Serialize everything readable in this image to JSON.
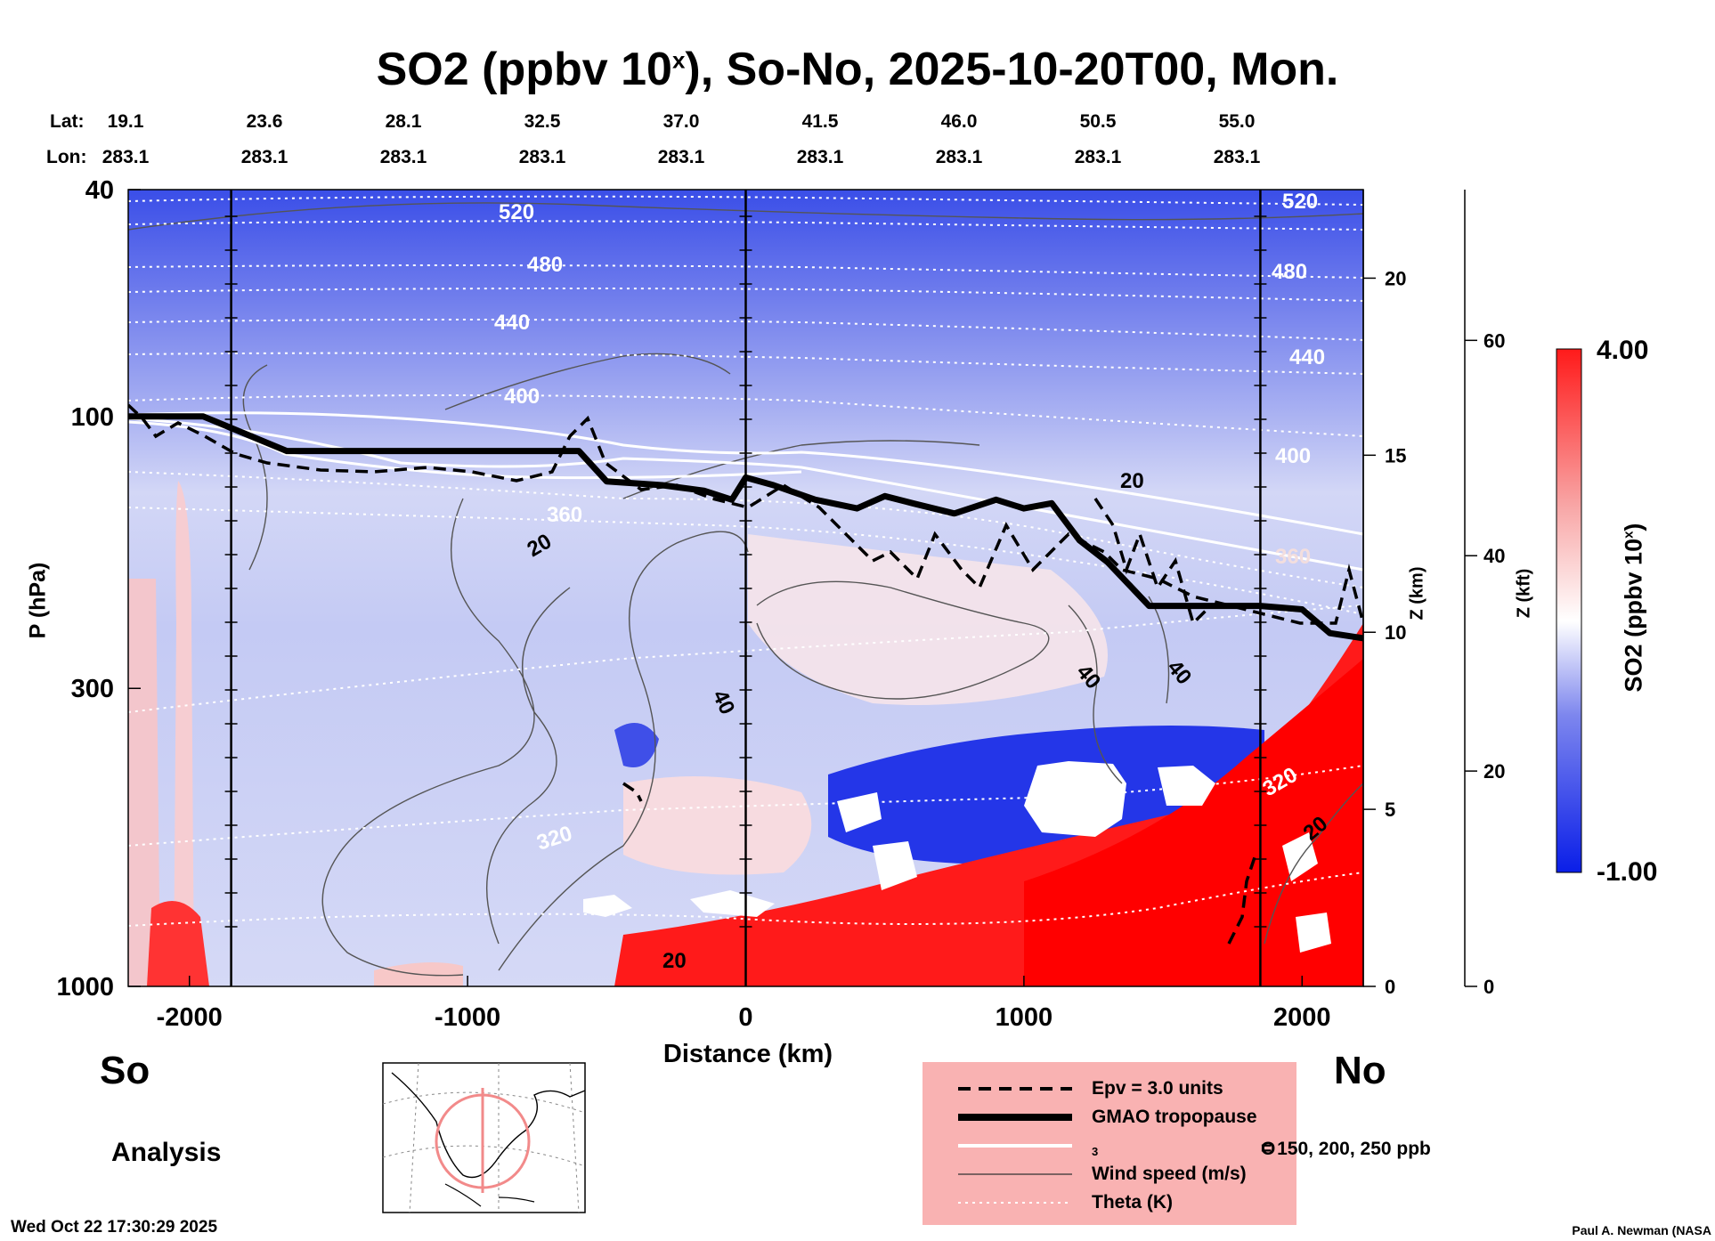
{
  "title": {
    "prefix": "SO2 (ppbv 10",
    "superscript": "x",
    "suffix": "), So-No, 2025-10-20T00, Mon."
  },
  "header": {
    "lat_label": "Lat:",
    "lon_label": "Lon:",
    "lat_values": [
      "19.1",
      "23.6",
      "28.1",
      "32.5",
      "37.0",
      "41.5",
      "46.0",
      "50.5",
      "55.0"
    ],
    "lon_values": [
      "283.1",
      "283.1",
      "283.1",
      "283.1",
      "283.1",
      "283.1",
      "283.1",
      "283.1",
      "283.1"
    ]
  },
  "end_labels": {
    "south": "So",
    "north": "No"
  },
  "analysis_label": "Analysis",
  "timestamp": "Wed Oct 22 17:30:29 2025",
  "author": "Paul A. Newman (NASA",
  "colors": {
    "so2_high": "#ff1a1a",
    "so2_mid": "#ffffff",
    "so2_low": "#0a1ee8",
    "legend_bg": "#f9b2b2",
    "contour": "#555555"
  },
  "legend": {
    "items": [
      {
        "label": "Epv = 3.0 units",
        "style": "dashed-black"
      },
      {
        "label": "GMAO tropopause",
        "style": "thick-black"
      },
      {
        "label": "O",
        "subscript": "3",
        "label_suffix": " = 150, 200, 250 ppb",
        "style": "white"
      },
      {
        "label": "Wind speed (m/s)",
        "style": "thin-gray"
      },
      {
        "label": "Theta (K)",
        "style": "dotted-white"
      }
    ]
  },
  "chart_data": {
    "type": "heatmap",
    "title": "SO2 (ppbv 10^x), So-No, 2025-10-20T00, Mon.",
    "xlabel": "Distance (km)",
    "ylabel": "P (hPa)",
    "xlim": [
      -2220,
      2220
    ],
    "x_ticks": [
      -2000,
      -1000,
      0,
      1000,
      2000
    ],
    "x_tick_labels": [
      "-2000",
      "-1000",
      "0",
      "1000",
      "2000"
    ],
    "y_scale": "log",
    "ylim": [
      1000,
      40
    ],
    "y_ticks": [
      40,
      100,
      300,
      1000
    ],
    "y_tick_labels": [
      "40",
      "100",
      "300",
      "1000"
    ],
    "z_km_label": "Z (km)",
    "z_km_ticks": [
      0,
      5,
      10,
      15,
      20
    ],
    "z_kft_label": "Z (kft)",
    "z_kft_ticks": [
      0,
      20,
      40,
      60
    ],
    "section_lines_km": [
      -1850,
      0,
      1850
    ],
    "colorbar": {
      "label_prefix": "SO2 (ppbv 10",
      "label_sup": "x",
      "label_suffix": ")",
      "max_label": "4.00",
      "min_label": "-1.00",
      "range": [
        -1.0,
        4.0
      ]
    },
    "tropopause_hPa": {
      "x": [
        -2220,
        -1950,
        -1650,
        -1400,
        -1100,
        -800,
        -600,
        -500,
        -300,
        -150,
        -50,
        0,
        100,
        250,
        400,
        500,
        600,
        750,
        900,
        1000,
        1100,
        1200,
        1300,
        1450,
        1600,
        1850,
        2000,
        2100,
        2220
      ],
      "p": [
        100,
        100,
        115,
        115,
        115,
        115,
        115,
        130,
        132,
        135,
        140,
        128,
        132,
        140,
        145,
        138,
        142,
        148,
        140,
        145,
        142,
        165,
        180,
        215,
        215,
        215,
        218,
        240,
        245
      ]
    },
    "theta_contours": [
      {
        "label": "520",
        "p_left": 46,
        "p_right": 46
      },
      {
        "label": "480",
        "p_left": 56,
        "p_right": 56
      },
      {
        "label": "440",
        "p_left": 70,
        "p_right": 77
      },
      {
        "label": "400",
        "p_left": 95,
        "p_right": 110
      },
      {
        "label": "360",
        "p_left": 135,
        "p_right": 175
      },
      {
        "label": "320",
        "p_left": 480,
        "p_right": 450
      }
    ],
    "wind_speed_labels": [
      "20",
      "20",
      "20",
      "40",
      "40",
      "40",
      "20"
    ]
  }
}
